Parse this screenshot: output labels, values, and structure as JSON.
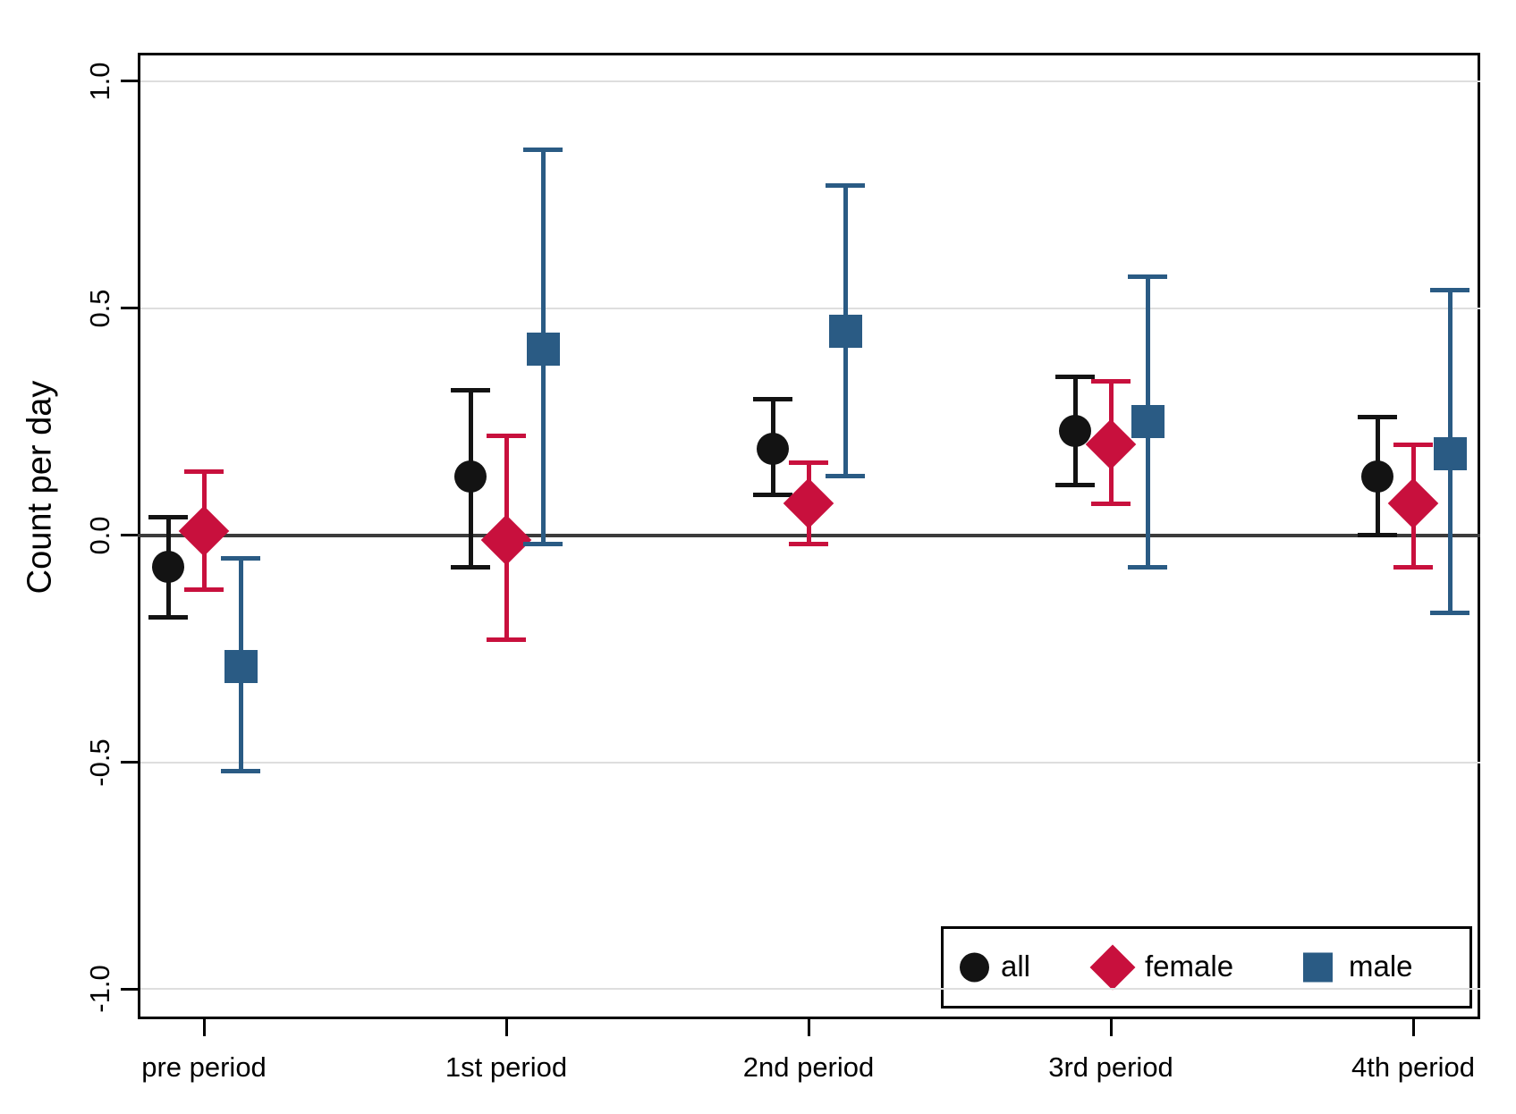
{
  "chart_data": {
    "type": "scatter",
    "subtype": "point-estimates-with-error-bars",
    "title": "",
    "xlabel": "",
    "ylabel": "Count per day",
    "categories": [
      "pre period",
      "1st period",
      "2nd period",
      "3rd period",
      "4th period"
    ],
    "yticks": {
      "values": [
        1.0,
        0.5,
        0.0,
        -0.5,
        -1.0
      ],
      "labels": [
        "1.0",
        "0.5",
        "0.0",
        "-0.5",
        "-1.0"
      ]
    },
    "ylim": [
      -1.066,
      1.063
    ],
    "grid": "horizontal-light-gray-at-ticks",
    "zero_reference_line": true,
    "series": [
      {
        "name": "all",
        "marker": "circle",
        "color": "#131313",
        "values": [
          -0.07,
          0.13,
          0.19,
          0.23,
          0.13
        ],
        "ci_low": [
          -0.18,
          -0.07,
          0.09,
          0.11,
          0.0
        ],
        "ci_high": [
          0.04,
          0.32,
          0.3,
          0.35,
          0.26
        ]
      },
      {
        "name": "female",
        "marker": "diamond",
        "color": "#c8103d",
        "values": [
          0.01,
          -0.01,
          0.07,
          0.2,
          0.07
        ],
        "ci_low": [
          -0.12,
          -0.23,
          -0.02,
          0.07,
          -0.07
        ],
        "ci_high": [
          0.14,
          0.22,
          0.16,
          0.34,
          0.2
        ]
      },
      {
        "name": "male",
        "marker": "square",
        "color": "#2a5b84",
        "values": [
          -0.29,
          0.41,
          0.45,
          0.25,
          0.18
        ],
        "ci_low": [
          -0.52,
          -0.02,
          0.13,
          -0.07,
          -0.17
        ],
        "ci_high": [
          -0.05,
          0.85,
          0.77,
          0.57,
          0.54
        ]
      }
    ],
    "legend": {
      "position": "inside-bottom-right",
      "entries": [
        "all",
        "female",
        "male"
      ]
    },
    "colors": {
      "gridline": "#dedede",
      "zero_line": "#3b3b3b",
      "axis": "#000000",
      "background": "#ffffff"
    }
  }
}
